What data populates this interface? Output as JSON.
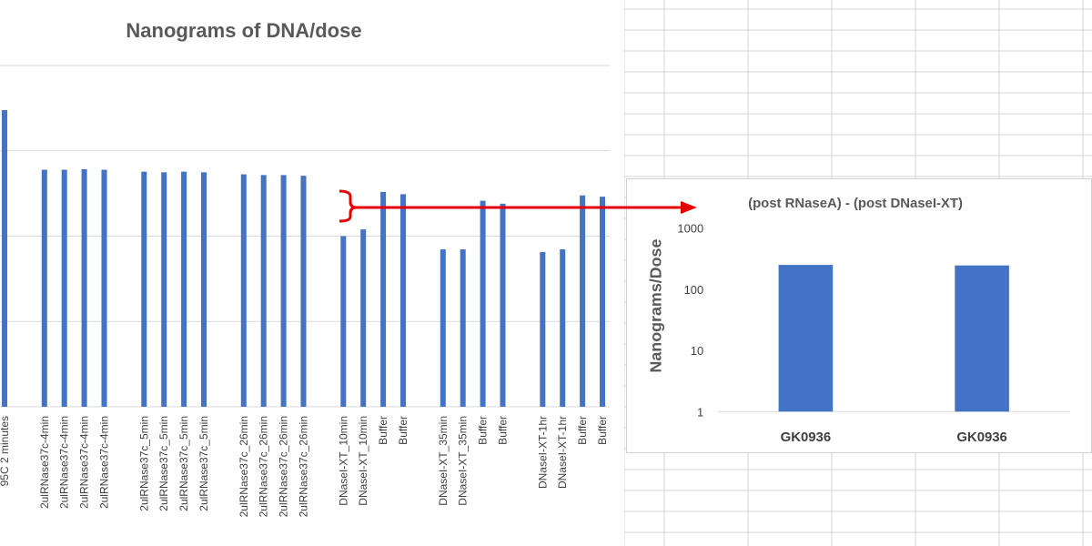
{
  "colors": {
    "bar": "#4472C4",
    "annotation": "#E60000",
    "grid": "#d9d9d9",
    "cell_grid": "#d4d4d4",
    "text": "#595959"
  },
  "chart_data": [
    {
      "type": "bar",
      "title": "Nanograms of DNA/dose",
      "xlabel": "",
      "ylabel": "",
      "scale": "log",
      "ylim": [
        1,
        100000
      ],
      "grid": true,
      "categories": [
        "95C 2 minutes",
        "",
        "2ulRNase37c-4min",
        "2ulRNase37c-4min",
        "2ulRNase37c-4min",
        "2ulRNase37c-4min",
        "",
        "2ulRNase37c_5min",
        "2ulRNase37c_5min",
        "2ulRNase37c_5min",
        "2ulRNase37c_5min",
        "",
        "2ulRNase37c_26min",
        "2ulRNase37c_26min",
        "2ulRNase37c_26min",
        "2ulRNase37c_26min",
        "",
        "DNaseI-XT_10min",
        "DNaseI-XT_10min",
        "Buffer",
        "Buffer",
        "",
        "DNaseI-XT_35min",
        "DNaseI-XT_35min",
        "Buffer",
        "Buffer",
        "",
        "DNaseI-XT-1hr",
        "DNaseI-XT-1hr",
        "Buffer",
        "Buffer"
      ],
      "values": [
        3000,
        null,
        600,
        600,
        610,
        600,
        null,
        570,
        560,
        570,
        560,
        null,
        530,
        520,
        520,
        510,
        null,
        100,
        120,
        330,
        310,
        null,
        70,
        70,
        260,
        240,
        null,
        65,
        70,
        300,
        290
      ]
    },
    {
      "type": "bar",
      "title": "(post RNaseA) - (post DNaseI-XT)",
      "xlabel": "",
      "ylabel": "Nanograms/Dose",
      "scale": "log",
      "ylim": [
        1,
        1000
      ],
      "yticks": [
        "1",
        "10",
        "100",
        "1000"
      ],
      "grid": false,
      "categories": [
        "GK0936",
        "GK0936"
      ],
      "values": [
        250,
        245
      ]
    }
  ]
}
